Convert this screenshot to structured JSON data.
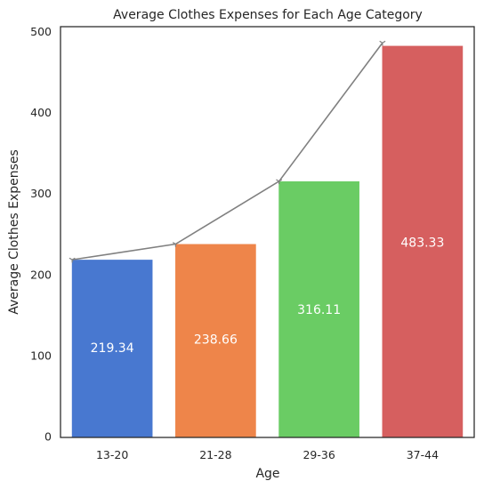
{
  "chart_data": {
    "type": "bar",
    "title": "Average Clothes Expenses for Each Age Category",
    "xlabel": "Age",
    "ylabel": "Average Clothes Expenses",
    "categories": [
      "13-20",
      "21-28",
      "29-36",
      "37-44"
    ],
    "values": [
      219.34,
      238.66,
      316.11,
      483.33
    ],
    "data_labels": [
      "219.34",
      "238.66",
      "316.11",
      "483.33"
    ],
    "bar_colors": [
      "#4878d0",
      "#ee854a",
      "#6acc64",
      "#d65f5f"
    ],
    "data_label_values": [
      110,
      120,
      157,
      240
    ],
    "line": {
      "color": "#808080",
      "marker": "tri-down",
      "values": [
        219.34,
        238.66,
        316.11,
        483.33
      ],
      "last_point_value": 487
    },
    "yticks": [
      "0",
      "100",
      "200",
      "300",
      "400",
      "500"
    ],
    "ytick_values": [
      0,
      100,
      200,
      300,
      400,
      500
    ],
    "ylim": [
      0,
      507
    ],
    "grid": false,
    "legend": "none"
  }
}
